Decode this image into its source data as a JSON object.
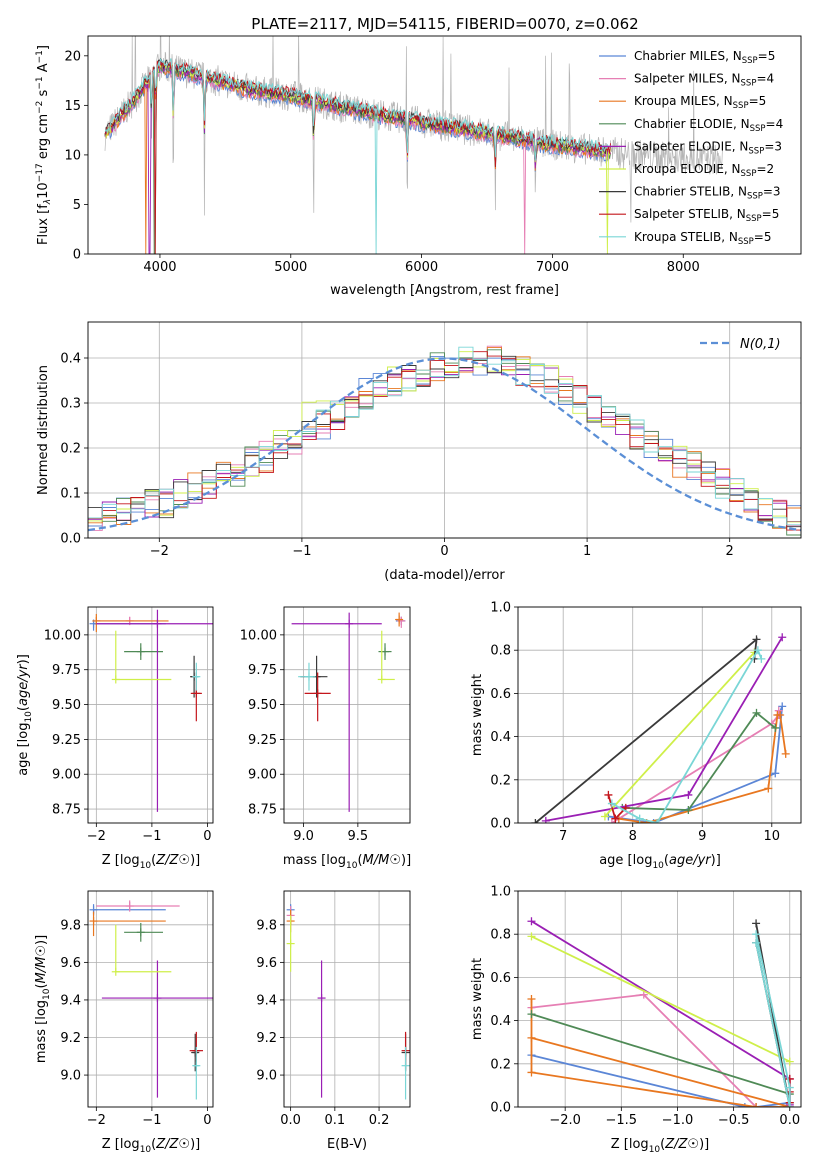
{
  "title": "PLATE=2117, MJD=54115, FIBERID=0070, z=0.062",
  "colors": {
    "chabrier_miles": "#5b86d6",
    "salpeter_miles": "#e67fb4",
    "kroupa_miles": "#e87720",
    "chabrier_elodie": "#4f8a56",
    "salpeter_elodie": "#9a1fb4",
    "kroupa_elodie": "#cfef4a",
    "chabrier_stelib": "#3a3a3a",
    "salpeter_stelib": "#c4161c",
    "kroupa_stelib": "#7ad6d6",
    "gaussian": "#5b8fd6"
  },
  "legend": [
    {
      "key": "chabrier_miles",
      "label": "Chabrier MILES, N",
      "sub": "SSP",
      "suffix": "=5"
    },
    {
      "key": "salpeter_miles",
      "label": "Salpeter MILES, N",
      "sub": "SSP",
      "suffix": "=4"
    },
    {
      "key": "kroupa_miles",
      "label": "Kroupa MILES, N",
      "sub": "SSP",
      "suffix": "=5"
    },
    {
      "key": "chabrier_elodie",
      "label": "Chabrier ELODIE, N",
      "sub": "SSP",
      "suffix": "=4"
    },
    {
      "key": "salpeter_elodie",
      "label": "Salpeter ELODIE, N",
      "sub": "SSP",
      "suffix": "=3"
    },
    {
      "key": "kroupa_elodie",
      "label": "Kroupa ELODIE, N",
      "sub": "SSP",
      "suffix": "=2"
    },
    {
      "key": "chabrier_stelib",
      "label": "Chabrier STELIB, N",
      "sub": "SSP",
      "suffix": "=3"
    },
    {
      "key": "salpeter_stelib",
      "label": "Salpeter STELIB, N",
      "sub": "SSP",
      "suffix": "=5"
    },
    {
      "key": "kroupa_stelib",
      "label": "Kroupa STELIB, N",
      "sub": "SSP",
      "suffix": "=5"
    }
  ],
  "chart_data": [
    {
      "id": "spectrum",
      "type": "line",
      "xlabel": "wavelength [Angstrom, rest frame]",
      "ylabel": "Flux [f_λ 10^-17 erg cm^-2 s^-1 A^-1]",
      "xlim": [
        3450,
        8900
      ],
      "ylim": [
        0,
        22
      ],
      "xticks": [
        4000,
        5000,
        6000,
        7000,
        8000
      ],
      "yticks": [
        0,
        5,
        10,
        15,
        20
      ],
      "grid": false,
      "legend_position": "top-right",
      "continuum": [
        [
          3580,
          12.0
        ],
        [
          3800,
          15.5
        ],
        [
          4000,
          19.0
        ],
        [
          4300,
          18.0
        ],
        [
          4700,
          16.5
        ],
        [
          5000,
          16.0
        ],
        [
          5500,
          14.5
        ],
        [
          6000,
          13.3
        ],
        [
          6500,
          12.2
        ],
        [
          7000,
          11.0
        ],
        [
          7500,
          10.2
        ],
        [
          8000,
          9.6
        ],
        [
          8300,
          9.5
        ]
      ],
      "dips": [
        [
          3934,
          9.0
        ],
        [
          3968,
          8.5
        ],
        [
          4102,
          13.5
        ],
        [
          4340,
          13.0
        ],
        [
          5175,
          12.0
        ],
        [
          5890,
          11.5
        ],
        [
          6563,
          8.5
        ],
        [
          6870,
          7.0
        ],
        [
          7600,
          7.0
        ]
      ],
      "observed_range": [
        3580,
        8300
      ],
      "model_range": [
        3580,
        7450
      ]
    },
    {
      "id": "residuals",
      "type": "histogram",
      "xlabel": "(data-model)/error",
      "ylabel": "Normed distribution",
      "xlim": [
        -2.5,
        2.5
      ],
      "ylim": [
        0,
        0.48
      ],
      "xticks": [
        -2,
        -1,
        0,
        1,
        2
      ],
      "yticks": [
        0.0,
        0.1,
        0.2,
        0.3,
        0.4
      ],
      "grid": true,
      "legend_position": "top-right",
      "reference_label": "N(0,1)",
      "bin_width": 0.1,
      "series_base": [
        0.04,
        0.05,
        0.06,
        0.07,
        0.08,
        0.08,
        0.1,
        0.11,
        0.12,
        0.14,
        0.15,
        0.17,
        0.18,
        0.2,
        0.21,
        0.23,
        0.25,
        0.27,
        0.3,
        0.32,
        0.34,
        0.35,
        0.36,
        0.37,
        0.38,
        0.38,
        0.39,
        0.39,
        0.4,
        0.38,
        0.37,
        0.36,
        0.35,
        0.33,
        0.31,
        0.29,
        0.27,
        0.25,
        0.23,
        0.21,
        0.19,
        0.17,
        0.16,
        0.14,
        0.12,
        0.1,
        0.09,
        0.07,
        0.05,
        0.04
      ]
    },
    {
      "id": "age_vs_Z",
      "type": "errorbar",
      "xlabel": "Z [log10(Z/Z☉)]",
      "ylabel": "age [log10(age/yr)]",
      "xlim": [
        -2.15,
        0.1
      ],
      "ylim": [
        8.65,
        10.2
      ],
      "xticks": [
        -2,
        -1,
        0
      ],
      "yticks": [
        8.75,
        9.0,
        9.25,
        9.5,
        9.75,
        10.0
      ],
      "points": [
        {
          "s": "chabrier_miles",
          "x": -2.05,
          "y": 10.08,
          "ex": [
            0.0,
            1.3
          ],
          "ey": [
            0.05,
            0.03
          ]
        },
        {
          "s": "salpeter_miles",
          "x": -1.4,
          "y": 10.1,
          "ex": [
            0.6,
            0.5
          ],
          "ey": [
            0.03,
            0.03
          ]
        },
        {
          "s": "kroupa_miles",
          "x": -2.0,
          "y": 10.1,
          "ex": [
            0.0,
            1.3
          ],
          "ey": [
            0.08,
            0.05
          ]
        },
        {
          "s": "chabrier_elodie",
          "x": -1.2,
          "y": 9.88,
          "ex": [
            0.3,
            0.4
          ],
          "ey": [
            0.06,
            0.06
          ]
        },
        {
          "s": "salpeter_elodie",
          "x": -0.9,
          "y": 10.08,
          "ex": [
            1.1,
            1.0
          ],
          "ey": [
            1.35,
            0.1
          ]
        },
        {
          "s": "kroupa_elodie",
          "x": -1.65,
          "y": 9.68,
          "ex": [
            0.0,
            1.0
          ],
          "ey": [
            0.0,
            0.35
          ]
        },
        {
          "s": "chabrier_stelib",
          "x": -0.24,
          "y": 9.7,
          "ex": [
            0.06,
            0.06
          ],
          "ey": [
            0.15,
            0.15
          ]
        },
        {
          "s": "salpeter_stelib",
          "x": -0.2,
          "y": 9.58,
          "ex": [
            0.1,
            0.1
          ],
          "ey": [
            0.2,
            0.15
          ]
        },
        {
          "s": "kroupa_stelib",
          "x": -0.2,
          "y": 9.7,
          "ex": [
            0.05,
            0.05
          ],
          "ey": [
            0.1,
            0.1
          ]
        }
      ]
    },
    {
      "id": "age_vs_mass",
      "type": "errorbar",
      "xlabel": "mass [log10(M/M☉)]",
      "ylabel": "",
      "xlim": [
        8.82,
        9.98
      ],
      "ylim": [
        8.65,
        10.2
      ],
      "xticks": [
        9.0,
        9.5
      ],
      "yticks": [
        8.75,
        9.0,
        9.25,
        9.5,
        9.75,
        10.0
      ],
      "points": [
        {
          "s": "chabrier_miles",
          "x": 9.9,
          "y": 10.1,
          "ex": [
            0.05,
            0.03
          ],
          "ey": [
            0.03,
            0.03
          ]
        },
        {
          "s": "salpeter_miles",
          "x": 9.9,
          "y": 10.1,
          "ex": [
            0.03,
            0.03
          ],
          "ey": [
            0.05,
            0.03
          ]
        },
        {
          "s": "kroupa_miles",
          "x": 9.88,
          "y": 10.11,
          "ex": [
            0.03,
            0.03
          ],
          "ey": [
            0.05,
            0.05
          ]
        },
        {
          "s": "chabrier_elodie",
          "x": 9.75,
          "y": 9.88,
          "ex": [
            0.06,
            0.06
          ],
          "ey": [
            0.06,
            0.06
          ]
        },
        {
          "s": "salpeter_elodie",
          "x": 9.42,
          "y": 10.08,
          "ex": [
            0.53,
            0.3
          ],
          "ey": [
            1.35,
            0.08
          ]
        },
        {
          "s": "kroupa_elodie",
          "x": 9.72,
          "y": 9.68,
          "ex": [
            0.0,
            0.12
          ],
          "ey": [
            0.0,
            0.35
          ]
        },
        {
          "s": "chabrier_stelib",
          "x": 9.12,
          "y": 9.7,
          "ex": [
            0.15,
            0.1
          ],
          "ey": [
            0.15,
            0.15
          ]
        },
        {
          "s": "salpeter_stelib",
          "x": 9.13,
          "y": 9.58,
          "ex": [
            0.12,
            0.12
          ],
          "ey": [
            0.2,
            0.15
          ]
        },
        {
          "s": "kroupa_stelib",
          "x": 9.05,
          "y": 9.7,
          "ex": [
            0.1,
            0.06
          ],
          "ey": [
            0.1,
            0.1
          ]
        }
      ]
    },
    {
      "id": "mw_vs_age",
      "type": "line",
      "xlabel": "age [log10(age/yr)]",
      "ylabel": "mass weight",
      "xlim": [
        6.35,
        10.42
      ],
      "ylim": [
        0.0,
        1.0
      ],
      "xticks": [
        7,
        8,
        9,
        10
      ],
      "yticks": [
        0.0,
        0.2,
        0.4,
        0.6,
        0.8,
        1.0
      ],
      "grid": true,
      "series": [
        {
          "s": "chabrier_miles",
          "x": [
            7.65,
            8.3,
            10.05,
            10.15,
            10.1
          ],
          "y": [
            0.03,
            0.0,
            0.23,
            0.54,
            0.5
          ]
        },
        {
          "s": "salpeter_miles",
          "x": [
            7.7,
            10.0,
            10.1,
            10.1
          ],
          "y": [
            0.0,
            0.46,
            0.5,
            0.52
          ]
        },
        {
          "s": "kroupa_miles",
          "x": [
            7.8,
            8.2,
            9.95,
            10.08,
            10.12,
            10.2
          ],
          "y": [
            0.02,
            0.0,
            0.16,
            0.5,
            0.5,
            0.32
          ]
        },
        {
          "s": "chabrier_elodie",
          "x": [
            7.85,
            8.8,
            9.78,
            10.05
          ],
          "y": [
            0.07,
            0.06,
            0.51,
            0.44
          ]
        },
        {
          "s": "salpeter_elodie",
          "x": [
            6.75,
            8.8,
            10.15
          ],
          "y": [
            0.01,
            0.13,
            0.86
          ]
        },
        {
          "s": "kroupa_elodie",
          "x": [
            7.6,
            9.75
          ],
          "y": [
            0.03,
            0.79
          ]
        },
        {
          "s": "chabrier_stelib",
          "x": [
            6.6,
            9.78,
            9.75
          ],
          "y": [
            0.0,
            0.85,
            0.76
          ]
        },
        {
          "s": "salpeter_stelib",
          "x": [
            7.65,
            7.75,
            7.9
          ],
          "y": [
            0.13,
            0.02,
            0.07
          ]
        },
        {
          "s": "kroupa_stelib",
          "x": [
            7.7,
            8.1,
            8.35,
            9.8,
            9.85
          ],
          "y": [
            0.09,
            0.02,
            0.0,
            0.8,
            0.76
          ]
        }
      ]
    },
    {
      "id": "mass_vs_Z",
      "type": "errorbar",
      "xlabel": "Z [log10(Z/Z☉)]",
      "ylabel": "mass [log10(M/M☉)]",
      "xlim": [
        -2.15,
        0.1
      ],
      "ylim": [
        8.83,
        9.98
      ],
      "xticks": [
        -2,
        -1,
        0
      ],
      "yticks": [
        9.0,
        9.2,
        9.4,
        9.6,
        9.8
      ],
      "points": [
        {
          "s": "chabrier_miles",
          "x": -2.05,
          "y": 9.88,
          "ex": [
            0.0,
            1.3
          ],
          "ey": [
            0.03,
            0.03
          ]
        },
        {
          "s": "salpeter_miles",
          "x": -1.4,
          "y": 9.9,
          "ex": [
            0.6,
            0.9
          ],
          "ey": [
            0.03,
            0.03
          ]
        },
        {
          "s": "kroupa_miles",
          "x": -2.05,
          "y": 9.82,
          "ex": [
            0.0,
            1.3
          ],
          "ey": [
            0.08,
            0.05
          ]
        },
        {
          "s": "chabrier_elodie",
          "x": -1.2,
          "y": 9.76,
          "ex": [
            0.3,
            0.4
          ],
          "ey": [
            0.05,
            0.05
          ]
        },
        {
          "s": "salpeter_elodie",
          "x": -0.9,
          "y": 9.41,
          "ex": [
            1.0,
            1.05
          ],
          "ey": [
            0.53,
            0.2
          ]
        },
        {
          "s": "kroupa_elodie",
          "x": -1.65,
          "y": 9.55,
          "ex": [
            0.0,
            1.0
          ],
          "ey": [
            0.0,
            0.25
          ]
        },
        {
          "s": "chabrier_stelib",
          "x": -0.22,
          "y": 9.12,
          "ex": [
            0.05,
            0.05
          ],
          "ey": [
            0.1,
            0.1
          ]
        },
        {
          "s": "salpeter_stelib",
          "x": -0.2,
          "y": 9.13,
          "ex": [
            0.12,
            0.12
          ],
          "ey": [
            0.1,
            0.1
          ]
        },
        {
          "s": "kroupa_stelib",
          "x": -0.2,
          "y": 9.05,
          "ex": [
            0.05,
            0.05
          ],
          "ey": [
            0.18,
            0.1
          ]
        }
      ]
    },
    {
      "id": "mass_vs_ebv",
      "type": "errorbar",
      "xlabel": "E(B-V)",
      "ylabel": "",
      "xlim": [
        -0.015,
        0.27
      ],
      "ylim": [
        8.83,
        9.98
      ],
      "xticks": [
        0.0,
        0.1,
        0.2
      ],
      "yticks": [
        9.0,
        9.2,
        9.4,
        9.6,
        9.8
      ],
      "points": [
        {
          "s": "chabrier_miles",
          "x": 0.0,
          "y": 9.88,
          "ex": [
            0,
            0
          ],
          "ey": [
            0.03,
            0.03
          ]
        },
        {
          "s": "salpeter_miles",
          "x": 0.0,
          "y": 9.85,
          "ex": [
            0,
            0
          ],
          "ey": [
            0.05,
            0.05
          ]
        },
        {
          "s": "kroupa_miles",
          "x": 0.0,
          "y": 9.82,
          "ex": [
            0,
            0
          ],
          "ey": [
            0.06,
            0.06
          ]
        },
        {
          "s": "kroupa_elodie",
          "x": 0.0,
          "y": 9.7,
          "ex": [
            0,
            0
          ],
          "ey": [
            0.15,
            0.15
          ]
        },
        {
          "s": "salpeter_elodie",
          "x": 0.07,
          "y": 9.41,
          "ex": [
            0,
            0
          ],
          "ey": [
            0.53,
            0.2
          ]
        },
        {
          "s": "chabrier_stelib",
          "x": 0.26,
          "y": 9.12,
          "ex": [
            0,
            0
          ],
          "ey": [
            0.1,
            0.1
          ]
        },
        {
          "s": "salpeter_stelib",
          "x": 0.26,
          "y": 9.13,
          "ex": [
            0,
            0
          ],
          "ey": [
            0.1,
            0.1
          ]
        },
        {
          "s": "kroupa_stelib",
          "x": 0.26,
          "y": 9.05,
          "ex": [
            0,
            0
          ],
          "ey": [
            0.18,
            0.1
          ]
        }
      ]
    },
    {
      "id": "mw_vs_Z",
      "type": "line",
      "xlabel": "Z [log10(Z/Z☉)]",
      "ylabel": "mass weight",
      "xlim": [
        -2.42,
        0.1
      ],
      "ylim": [
        0.0,
        1.0
      ],
      "xticks": [
        -2.0,
        -1.5,
        -1.0,
        -0.5,
        0.0
      ],
      "yticks": [
        0.0,
        0.2,
        0.4,
        0.6,
        0.8,
        1.0
      ],
      "grid": true,
      "series": [
        {
          "s": "chabrier_miles",
          "x": [
            -2.3,
            -0.4,
            -0.3,
            0.0
          ],
          "y": [
            0.24,
            0.0,
            0.0,
            0.02
          ]
        },
        {
          "s": "salpeter_miles",
          "x": [
            -2.3,
            -1.3,
            -0.3
          ],
          "y": [
            0.46,
            0.52,
            0.0
          ]
        },
        {
          "s": "kroupa_miles",
          "x": [
            -2.3,
            -2.3,
            -0.3,
            0.0,
            -2.3
          ],
          "y": [
            0.5,
            0.16,
            0.0,
            0.0,
            0.32
          ]
        },
        {
          "s": "chabrier_elodie",
          "x": [
            -2.3,
            0.0
          ],
          "y": [
            0.43,
            0.06
          ]
        },
        {
          "s": "salpeter_elodie",
          "x": [
            -2.3,
            0.0,
            0.0
          ],
          "y": [
            0.86,
            0.13,
            0.01
          ]
        },
        {
          "s": "kroupa_elodie",
          "x": [
            -2.3,
            0.0
          ],
          "y": [
            0.79,
            0.21
          ]
        },
        {
          "s": "chabrier_stelib",
          "x": [
            -0.3,
            0.0,
            -0.3
          ],
          "y": [
            0.85,
            0.0,
            0.76
          ]
        },
        {
          "s": "salpeter_stelib",
          "x": [
            0.0,
            0.0,
            0.0
          ],
          "y": [
            0.13,
            0.02,
            0.07
          ]
        },
        {
          "s": "kroupa_stelib",
          "x": [
            -0.3,
            0.0,
            0.0,
            -0.3
          ],
          "y": [
            0.8,
            0.09,
            0.0,
            0.76
          ]
        }
      ]
    }
  ]
}
